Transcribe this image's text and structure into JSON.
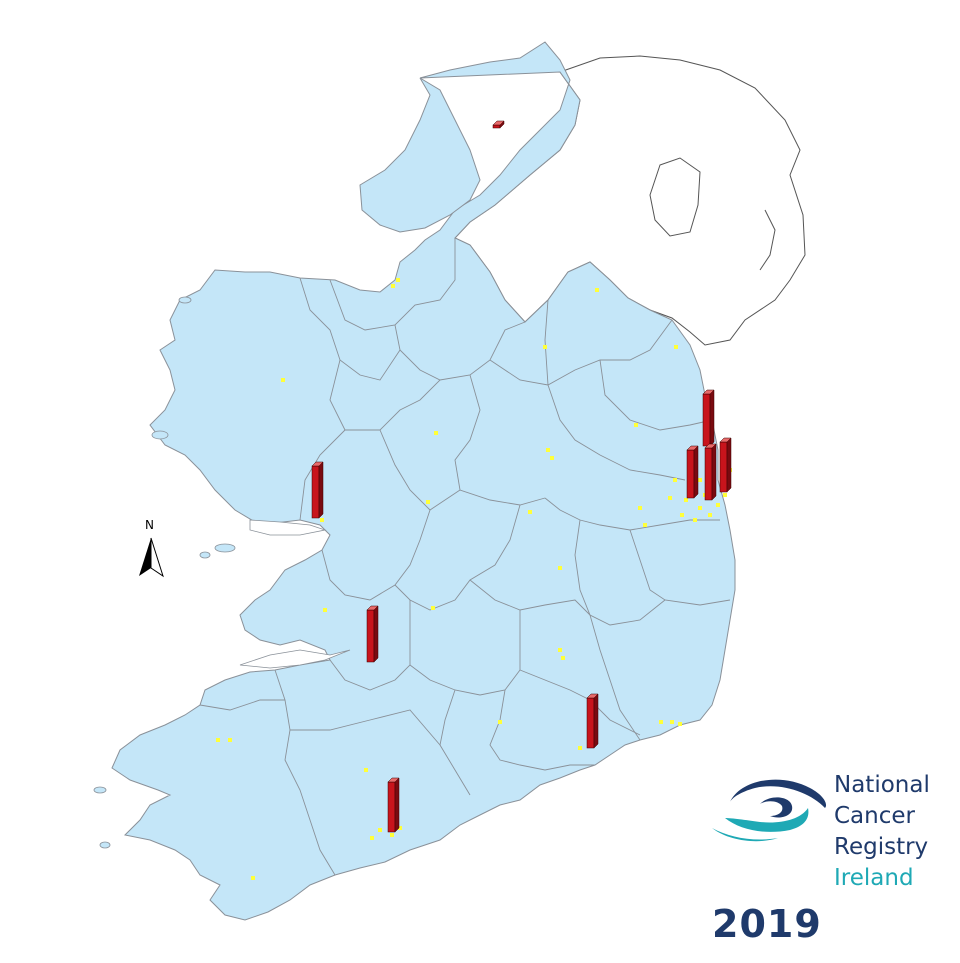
{
  "year": "2019",
  "north_label": "N",
  "logo": {
    "line1": "National",
    "line2": "Cancer",
    "line3": "Registry",
    "line4": "Ireland",
    "mark_name": "ncri-eye-swirl-logo"
  },
  "colors": {
    "land": "#c4e6f8",
    "border": "#8f9aa3",
    "northern_ireland_fill": "#ffffff",
    "bar_front": "#c8141c",
    "bar_side": "#7a0a10",
    "bar_top": "#e86a6a",
    "point": "#ffff3a",
    "logo_navy": "#1f3a6b",
    "logo_teal": "#1fa9b5",
    "text_navy": "#1f3a6b",
    "text_teal": "#1fa9b5"
  },
  "legend_icons": [
    "north-arrow-icon"
  ]
}
